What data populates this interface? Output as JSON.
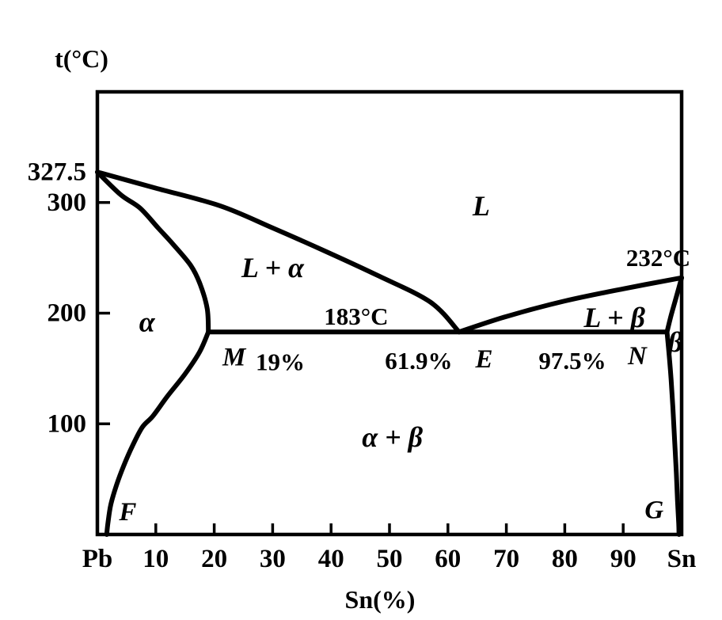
{
  "figure": {
    "background": "#ffffff",
    "ink": "#000000"
  },
  "chart_data": {
    "type": "line",
    "xlabel": "Sn(%)",
    "ylabel": "t(°C)",
    "xlim": [
      0,
      100
    ],
    "ylim": [
      0,
      400
    ],
    "grid": false,
    "legend": "none",
    "x_tick_marks": [
      10,
      20,
      30,
      40,
      50,
      60,
      70,
      80,
      90
    ],
    "x_ticks": [
      {
        "value": 0,
        "label": "Pb"
      },
      {
        "value": 10,
        "label": "10"
      },
      {
        "value": 20,
        "label": "20"
      },
      {
        "value": 30,
        "label": "30"
      },
      {
        "value": 40,
        "label": "40"
      },
      {
        "value": 50,
        "label": "50"
      },
      {
        "value": 60,
        "label": "60"
      },
      {
        "value": 70,
        "label": "70"
      },
      {
        "value": 80,
        "label": "80"
      },
      {
        "value": 90,
        "label": "90"
      },
      {
        "value": 100,
        "label": "Sn"
      }
    ],
    "y_ticks": [
      {
        "value": 100,
        "label": "100",
        "tick": true
      },
      {
        "value": 200,
        "label": "200",
        "tick": true
      },
      {
        "value": 300,
        "label": "300",
        "tick": true
      },
      {
        "value": 327.5,
        "label": "327.5",
        "tick": false
      }
    ],
    "series": [
      {
        "id": "liquidus-left",
        "name": "liquidus L / L+α",
        "points": [
          [
            0,
            327.5
          ],
          [
            10,
            313
          ],
          [
            21,
            297
          ],
          [
            30,
            277
          ],
          [
            39,
            256
          ],
          [
            48,
            234
          ],
          [
            57,
            210
          ],
          [
            61.9,
            183
          ]
        ]
      },
      {
        "id": "solidus-left",
        "name": "solidus L+α / α",
        "points": [
          [
            0,
            327.5
          ],
          [
            4,
            307
          ],
          [
            7.3,
            295
          ],
          [
            10.4,
            277
          ],
          [
            13,
            262
          ],
          [
            16,
            243
          ],
          [
            17.6,
            226
          ],
          [
            18.8,
            204
          ],
          [
            19,
            183
          ]
        ]
      },
      {
        "id": "solvus-left",
        "name": "solvus α / α+β",
        "points": [
          [
            19,
            183
          ],
          [
            17.5,
            165
          ],
          [
            15,
            145
          ],
          [
            12,
            125
          ],
          [
            9.5,
            107
          ],
          [
            7.7,
            97
          ],
          [
            6,
            80
          ],
          [
            4.5,
            62
          ],
          [
            3.3,
            45
          ],
          [
            2.3,
            27
          ],
          [
            1.8,
            10
          ],
          [
            1.6,
            0
          ]
        ]
      },
      {
        "id": "eutectic-line",
        "name": "eutectic isotherm 183°C",
        "points": [
          [
            19,
            183
          ],
          [
            97.5,
            183
          ]
        ]
      },
      {
        "id": "liquidus-right",
        "name": "liquidus L / L+β",
        "points": [
          [
            61.9,
            183
          ],
          [
            70,
            197
          ],
          [
            80,
            211
          ],
          [
            90,
            222
          ],
          [
            100,
            232
          ]
        ]
      },
      {
        "id": "solidus-right",
        "name": "solidus L+β / β",
        "points": [
          [
            100,
            232
          ],
          [
            99,
            213
          ],
          [
            98.2,
            198
          ],
          [
            97.5,
            183
          ]
        ]
      },
      {
        "id": "solvus-right",
        "name": "solvus β / α+β",
        "points": [
          [
            97.5,
            183
          ],
          [
            97.9,
            160
          ],
          [
            98.2,
            140
          ],
          [
            98.5,
            115
          ],
          [
            98.8,
            85
          ],
          [
            99.1,
            55
          ],
          [
            99.3,
            30
          ],
          [
            99.5,
            10
          ],
          [
            99.55,
            0
          ]
        ]
      }
    ],
    "annotations": [
      {
        "id": "region-l",
        "text": "L",
        "x": 65.7,
        "t": 297,
        "kind": "region"
      },
      {
        "id": "region-l-alpha",
        "text": "L + α",
        "x": 30,
        "t": 241,
        "kind": "region"
      },
      {
        "id": "region-alpha",
        "text": "α",
        "x": 8.5,
        "t": 192,
        "kind": "region"
      },
      {
        "id": "region-l-beta",
        "text": "L + β",
        "x": 88.5,
        "t": 196,
        "kind": "region"
      },
      {
        "id": "region-beta",
        "text": "β",
        "x": 98.9,
        "t": 174,
        "kind": "region"
      },
      {
        "id": "region-alpha-beta",
        "text": "α + β",
        "x": 50.5,
        "t": 88,
        "kind": "region"
      },
      {
        "id": "eutectic-temp",
        "text": "183°C",
        "x": 44.3,
        "t": 197,
        "kind": "value"
      },
      {
        "id": "sn-melting-temp",
        "text": "232°C",
        "x": 96,
        "t": 250,
        "kind": "value"
      },
      {
        "id": "point-m",
        "text": "M",
        "x": 23.4,
        "t": 160,
        "kind": "point"
      },
      {
        "id": "m-composition",
        "text": "19%",
        "x": 31.3,
        "t": 156,
        "kind": "value"
      },
      {
        "id": "e-composition",
        "text": "61.9%",
        "x": 55,
        "t": 157,
        "kind": "value"
      },
      {
        "id": "point-e",
        "text": "E",
        "x": 66.2,
        "t": 158,
        "kind": "point"
      },
      {
        "id": "n-composition",
        "text": "97.5%",
        "x": 81.3,
        "t": 157,
        "kind": "value"
      },
      {
        "id": "point-n",
        "text": "N",
        "x": 92.4,
        "t": 161,
        "kind": "point"
      },
      {
        "id": "point-f",
        "text": "F",
        "x": 5.2,
        "t": 20,
        "kind": "point"
      },
      {
        "id": "point-g",
        "text": "G",
        "x": 95.3,
        "t": 22,
        "kind": "point"
      }
    ],
    "key_values": {
      "pb_melting_point_c": 327.5,
      "sn_melting_point_c": 232,
      "eutectic_temperature_c": 183,
      "eutectic_composition_pct_sn": 61.9,
      "point_m_max_alpha_solubility_pct_sn": 19,
      "point_n_beta_boundary_pct_sn": 97.5
    }
  }
}
